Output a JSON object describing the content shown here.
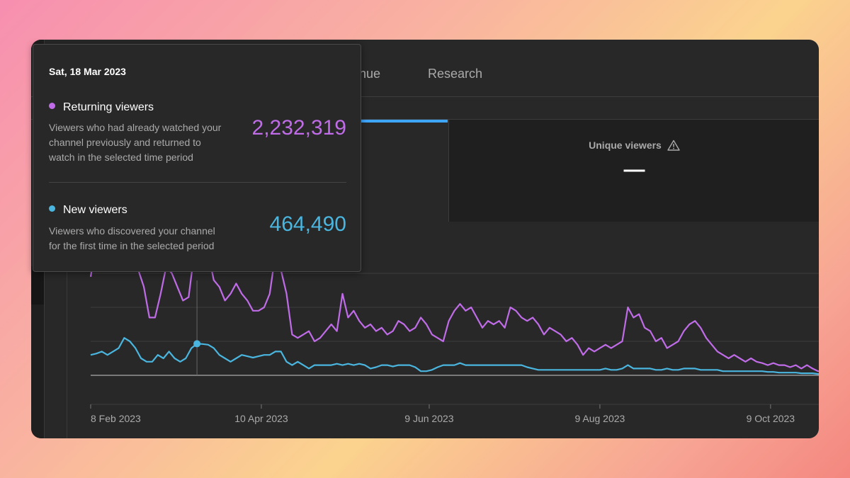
{
  "tabs": [
    {
      "label": "venue"
    },
    {
      "label": "Research"
    }
  ],
  "metric_card": {
    "title": "Unique viewers",
    "value": "—",
    "warning_icon": "warning-triangle-icon"
  },
  "tooltip": {
    "date": "Sat, 18 Mar 2023",
    "returning": {
      "label": "Returning viewers",
      "description_lines": [
        "Viewers who had already watched your",
        "channel previously and returned to",
        "watch in the selected time period"
      ],
      "value": "2,232,319",
      "color": "#c06ce8"
    },
    "new": {
      "label": "New viewers",
      "description_lines": [
        "Viewers who discovered your channel",
        "for the first time in the selected period"
      ],
      "value": "464,490",
      "color": "#4ab6df"
    }
  },
  "chart_data": {
    "type": "line",
    "title": "",
    "xlabel": "",
    "ylabel": "",
    "x_tick_labels": [
      "8 Feb 2023",
      "10 Apr 2023",
      "9 Jun 2023",
      "9 Aug 2023",
      "9 Oct 2023"
    ],
    "x_ticks_day": [
      0,
      61,
      121,
      182,
      243
    ],
    "ylim": [
      0,
      3000000
    ],
    "grid": true,
    "highlight_day": 38,
    "series": [
      {
        "name": "Returning viewers",
        "color": "#c06ce8",
        "points": [
          [
            0,
            1450000
          ],
          [
            2,
            1950000
          ],
          [
            4,
            1950000
          ],
          [
            5,
            1550000
          ],
          [
            7,
            1900000
          ],
          [
            9,
            1650000
          ],
          [
            11,
            2000000
          ],
          [
            13,
            2420000
          ],
          [
            15,
            2000000
          ],
          [
            17,
            1550000
          ],
          [
            19,
            1300000
          ],
          [
            21,
            850000
          ],
          [
            23,
            850000
          ],
          [
            25,
            1200000
          ],
          [
            27,
            1600000
          ],
          [
            29,
            1500000
          ],
          [
            31,
            1300000
          ],
          [
            33,
            1100000
          ],
          [
            35,
            1150000
          ],
          [
            37,
            1800000
          ],
          [
            38,
            2232319
          ],
          [
            40,
            1900000
          ],
          [
            42,
            1800000
          ],
          [
            44,
            1400000
          ],
          [
            46,
            1300000
          ],
          [
            48,
            1100000
          ],
          [
            50,
            1200000
          ],
          [
            52,
            1350000
          ],
          [
            54,
            1200000
          ],
          [
            56,
            1100000
          ],
          [
            58,
            950000
          ],
          [
            60,
            950000
          ],
          [
            62,
            1000000
          ],
          [
            64,
            1200000
          ],
          [
            66,
            1780000
          ],
          [
            68,
            1550000
          ],
          [
            70,
            1200000
          ],
          [
            72,
            600000
          ],
          [
            74,
            550000
          ],
          [
            76,
            600000
          ],
          [
            78,
            650000
          ],
          [
            80,
            500000
          ],
          [
            82,
            550000
          ],
          [
            84,
            650000
          ],
          [
            86,
            750000
          ],
          [
            88,
            650000
          ],
          [
            90,
            1200000
          ],
          [
            92,
            850000
          ],
          [
            94,
            950000
          ],
          [
            96,
            800000
          ],
          [
            98,
            700000
          ],
          [
            100,
            750000
          ],
          [
            102,
            650000
          ],
          [
            104,
            700000
          ],
          [
            106,
            600000
          ],
          [
            108,
            650000
          ],
          [
            110,
            800000
          ],
          [
            112,
            750000
          ],
          [
            114,
            650000
          ],
          [
            116,
            700000
          ],
          [
            118,
            850000
          ],
          [
            120,
            750000
          ],
          [
            122,
            600000
          ],
          [
            124,
            550000
          ],
          [
            126,
            500000
          ],
          [
            128,
            800000
          ],
          [
            130,
            950000
          ],
          [
            132,
            1050000
          ],
          [
            134,
            950000
          ],
          [
            136,
            1000000
          ],
          [
            138,
            850000
          ],
          [
            140,
            700000
          ],
          [
            142,
            800000
          ],
          [
            144,
            750000
          ],
          [
            146,
            800000
          ],
          [
            148,
            700000
          ],
          [
            150,
            1000000
          ],
          [
            152,
            950000
          ],
          [
            154,
            850000
          ],
          [
            156,
            800000
          ],
          [
            158,
            850000
          ],
          [
            160,
            750000
          ],
          [
            162,
            600000
          ],
          [
            164,
            700000
          ],
          [
            166,
            650000
          ],
          [
            168,
            600000
          ],
          [
            170,
            500000
          ],
          [
            172,
            550000
          ],
          [
            174,
            450000
          ],
          [
            176,
            300000
          ],
          [
            178,
            400000
          ],
          [
            180,
            350000
          ],
          [
            182,
            400000
          ],
          [
            184,
            450000
          ],
          [
            186,
            400000
          ],
          [
            188,
            450000
          ],
          [
            190,
            500000
          ],
          [
            192,
            1000000
          ],
          [
            194,
            850000
          ],
          [
            196,
            900000
          ],
          [
            198,
            700000
          ],
          [
            200,
            650000
          ],
          [
            202,
            500000
          ],
          [
            204,
            550000
          ],
          [
            206,
            400000
          ],
          [
            208,
            450000
          ],
          [
            210,
            500000
          ],
          [
            212,
            650000
          ],
          [
            214,
            750000
          ],
          [
            216,
            800000
          ],
          [
            218,
            700000
          ],
          [
            220,
            550000
          ],
          [
            222,
            450000
          ],
          [
            224,
            350000
          ],
          [
            226,
            300000
          ],
          [
            228,
            250000
          ],
          [
            230,
            300000
          ],
          [
            232,
            250000
          ],
          [
            234,
            200000
          ],
          [
            236,
            250000
          ],
          [
            238,
            200000
          ],
          [
            240,
            180000
          ],
          [
            242,
            150000
          ],
          [
            244,
            180000
          ],
          [
            246,
            150000
          ],
          [
            248,
            150000
          ],
          [
            250,
            120000
          ],
          [
            252,
            150000
          ],
          [
            254,
            100000
          ],
          [
            256,
            150000
          ],
          [
            258,
            100000
          ],
          [
            260,
            60000
          ],
          [
            262,
            60000
          ]
        ]
      },
      {
        "name": "New viewers",
        "color": "#4ab6df",
        "points": [
          [
            0,
            300000
          ],
          [
            2,
            320000
          ],
          [
            4,
            350000
          ],
          [
            6,
            300000
          ],
          [
            8,
            350000
          ],
          [
            10,
            400000
          ],
          [
            12,
            550000
          ],
          [
            14,
            500000
          ],
          [
            16,
            400000
          ],
          [
            18,
            250000
          ],
          [
            20,
            200000
          ],
          [
            22,
            200000
          ],
          [
            24,
            300000
          ],
          [
            26,
            250000
          ],
          [
            28,
            350000
          ],
          [
            30,
            250000
          ],
          [
            32,
            200000
          ],
          [
            34,
            250000
          ],
          [
            36,
            400000
          ],
          [
            38,
            464490
          ],
          [
            40,
            460000
          ],
          [
            42,
            450000
          ],
          [
            44,
            400000
          ],
          [
            46,
            300000
          ],
          [
            48,
            250000
          ],
          [
            50,
            200000
          ],
          [
            52,
            250000
          ],
          [
            54,
            300000
          ],
          [
            56,
            280000
          ],
          [
            58,
            260000
          ],
          [
            60,
            280000
          ],
          [
            62,
            300000
          ],
          [
            64,
            300000
          ],
          [
            66,
            350000
          ],
          [
            68,
            350000
          ],
          [
            70,
            200000
          ],
          [
            72,
            150000
          ],
          [
            74,
            200000
          ],
          [
            76,
            150000
          ],
          [
            78,
            100000
          ],
          [
            80,
            150000
          ],
          [
            82,
            150000
          ],
          [
            84,
            150000
          ],
          [
            86,
            150000
          ],
          [
            88,
            170000
          ],
          [
            90,
            150000
          ],
          [
            92,
            170000
          ],
          [
            94,
            150000
          ],
          [
            96,
            170000
          ],
          [
            98,
            150000
          ],
          [
            100,
            100000
          ],
          [
            102,
            120000
          ],
          [
            104,
            150000
          ],
          [
            106,
            150000
          ],
          [
            108,
            130000
          ],
          [
            110,
            150000
          ],
          [
            112,
            150000
          ],
          [
            114,
            150000
          ],
          [
            116,
            120000
          ],
          [
            118,
            60000
          ],
          [
            120,
            60000
          ],
          [
            122,
            80000
          ],
          [
            124,
            120000
          ],
          [
            126,
            150000
          ],
          [
            128,
            150000
          ],
          [
            130,
            150000
          ],
          [
            132,
            180000
          ],
          [
            134,
            150000
          ],
          [
            136,
            150000
          ],
          [
            138,
            150000
          ],
          [
            140,
            150000
          ],
          [
            142,
            150000
          ],
          [
            144,
            150000
          ],
          [
            146,
            150000
          ],
          [
            148,
            150000
          ],
          [
            150,
            150000
          ],
          [
            152,
            150000
          ],
          [
            154,
            150000
          ],
          [
            156,
            120000
          ],
          [
            158,
            100000
          ],
          [
            160,
            80000
          ],
          [
            162,
            80000
          ],
          [
            164,
            80000
          ],
          [
            166,
            80000
          ],
          [
            168,
            80000
          ],
          [
            170,
            80000
          ],
          [
            172,
            80000
          ],
          [
            174,
            80000
          ],
          [
            176,
            80000
          ],
          [
            178,
            80000
          ],
          [
            180,
            80000
          ],
          [
            182,
            80000
          ],
          [
            184,
            100000
          ],
          [
            186,
            80000
          ],
          [
            188,
            80000
          ],
          [
            190,
            100000
          ],
          [
            192,
            150000
          ],
          [
            194,
            100000
          ],
          [
            196,
            100000
          ],
          [
            198,
            100000
          ],
          [
            200,
            100000
          ],
          [
            202,
            80000
          ],
          [
            204,
            80000
          ],
          [
            206,
            100000
          ],
          [
            208,
            80000
          ],
          [
            210,
            80000
          ],
          [
            212,
            100000
          ],
          [
            214,
            100000
          ],
          [
            216,
            100000
          ],
          [
            218,
            80000
          ],
          [
            220,
            80000
          ],
          [
            222,
            80000
          ],
          [
            224,
            80000
          ],
          [
            226,
            60000
          ],
          [
            228,
            60000
          ],
          [
            230,
            60000
          ],
          [
            232,
            60000
          ],
          [
            234,
            60000
          ],
          [
            236,
            60000
          ],
          [
            238,
            60000
          ],
          [
            240,
            60000
          ],
          [
            242,
            50000
          ],
          [
            244,
            50000
          ],
          [
            246,
            40000
          ],
          [
            248,
            40000
          ],
          [
            250,
            40000
          ],
          [
            252,
            40000
          ],
          [
            254,
            30000
          ],
          [
            256,
            30000
          ],
          [
            258,
            30000
          ],
          [
            260,
            20000
          ],
          [
            262,
            20000
          ]
        ]
      }
    ]
  }
}
